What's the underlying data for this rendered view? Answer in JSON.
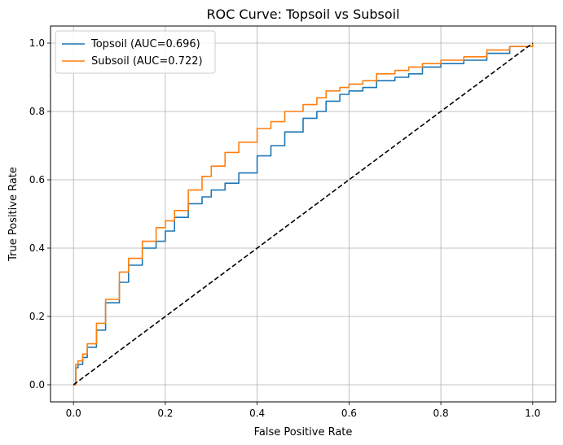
{
  "chart_data": {
    "type": "line",
    "title": "ROC Curve: Topsoil vs Subsoil",
    "xlabel": "False Positive Rate",
    "ylabel": "True Positive Rate",
    "xlim": [
      -0.05,
      1.05
    ],
    "ylim": [
      -0.05,
      1.05
    ],
    "xticks": [
      0.0,
      0.2,
      0.4,
      0.6,
      0.8,
      1.0
    ],
    "yticks": [
      0.0,
      0.2,
      0.4,
      0.6,
      0.8,
      1.0
    ],
    "xtick_labels": [
      "0.0",
      "0.2",
      "0.4",
      "0.6",
      "0.8",
      "1.0"
    ],
    "ytick_labels": [
      "0.0",
      "0.2",
      "0.4",
      "0.6",
      "0.8",
      "1.0"
    ],
    "grid": true,
    "legend_position": "top-left",
    "series": [
      {
        "name": "Topsoil (AUC=0.696)",
        "color": "#1f77b4",
        "style": "solid",
        "x": [
          0.0,
          0.005,
          0.01,
          0.02,
          0.03,
          0.05,
          0.07,
          0.1,
          0.12,
          0.15,
          0.18,
          0.2,
          0.22,
          0.25,
          0.28,
          0.3,
          0.33,
          0.36,
          0.4,
          0.43,
          0.46,
          0.5,
          0.53,
          0.55,
          0.58,
          0.6,
          0.63,
          0.66,
          0.7,
          0.73,
          0.76,
          0.8,
          0.85,
          0.9,
          0.95,
          1.0
        ],
        "y": [
          0.0,
          0.05,
          0.06,
          0.08,
          0.11,
          0.16,
          0.24,
          0.3,
          0.35,
          0.4,
          0.42,
          0.45,
          0.49,
          0.53,
          0.55,
          0.57,
          0.59,
          0.62,
          0.67,
          0.7,
          0.74,
          0.78,
          0.8,
          0.83,
          0.85,
          0.86,
          0.87,
          0.89,
          0.9,
          0.91,
          0.93,
          0.94,
          0.95,
          0.97,
          0.99,
          1.0
        ]
      },
      {
        "name": "Subsoil (AUC=0.722)",
        "color": "#ff7f0e",
        "style": "solid",
        "x": [
          0.0,
          0.005,
          0.01,
          0.02,
          0.03,
          0.05,
          0.07,
          0.1,
          0.12,
          0.15,
          0.18,
          0.2,
          0.22,
          0.25,
          0.28,
          0.3,
          0.33,
          0.36,
          0.4,
          0.43,
          0.46,
          0.5,
          0.53,
          0.55,
          0.58,
          0.6,
          0.63,
          0.66,
          0.7,
          0.73,
          0.76,
          0.8,
          0.85,
          0.9,
          0.95,
          1.0
        ],
        "y": [
          0.0,
          0.06,
          0.07,
          0.09,
          0.12,
          0.18,
          0.25,
          0.33,
          0.37,
          0.42,
          0.46,
          0.48,
          0.51,
          0.57,
          0.61,
          0.64,
          0.68,
          0.71,
          0.75,
          0.77,
          0.8,
          0.82,
          0.84,
          0.86,
          0.87,
          0.88,
          0.89,
          0.91,
          0.92,
          0.93,
          0.94,
          0.95,
          0.96,
          0.98,
          0.99,
          1.0
        ]
      },
      {
        "name": "",
        "color": "#000000",
        "style": "dashed",
        "x": [
          0.0,
          1.0
        ],
        "y": [
          0.0,
          1.0
        ]
      }
    ]
  }
}
